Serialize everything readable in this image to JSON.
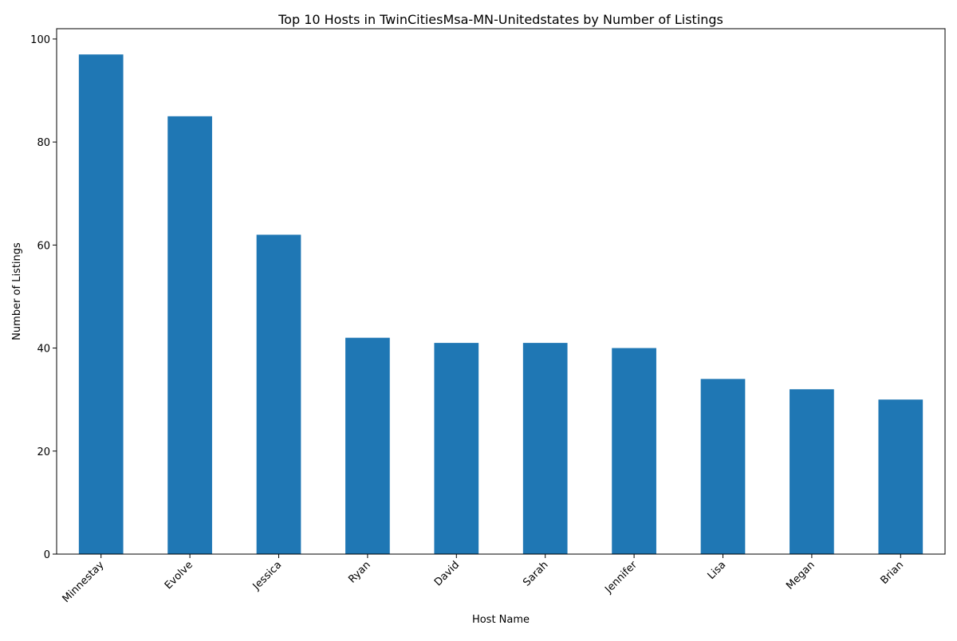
{
  "chart_data": {
    "type": "bar",
    "title": "Top 10 Hosts in TwinCitiesMsa-MN-Unitedstates by Number of Listings",
    "xlabel": "Host Name",
    "ylabel": "Number of Listings",
    "categories": [
      "Minnestay",
      "Evolve",
      "Jessica",
      "Ryan",
      "David",
      "Sarah",
      "Jennifer",
      "Lisa",
      "Megan",
      "Brian"
    ],
    "values": [
      97,
      85,
      62,
      42,
      41,
      41,
      40,
      34,
      32,
      30
    ],
    "ylim": [
      0,
      102
    ],
    "yticks": [
      0,
      20,
      40,
      60,
      80,
      100
    ],
    "bar_color": "#1f77b4",
    "grid": false,
    "legend": "none"
  }
}
